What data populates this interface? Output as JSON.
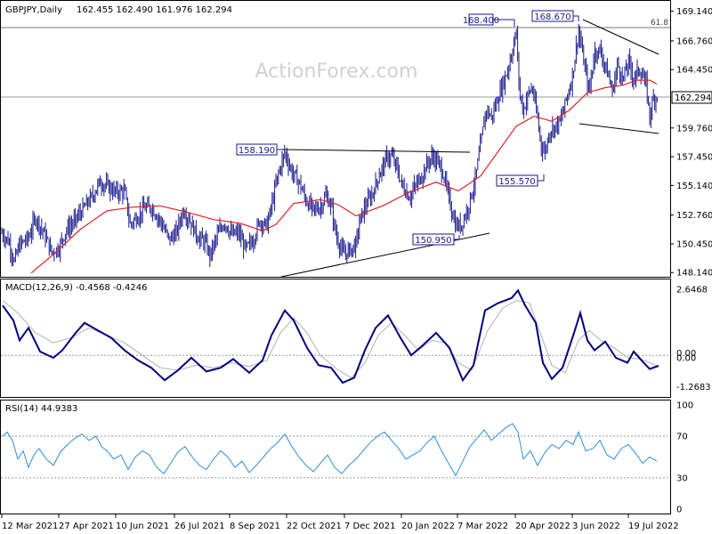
{
  "chart_data": {
    "type": "candlestick",
    "title": "GBPJPY,Daily",
    "ohlc_label": "162.455 162.490 161.976 162.294",
    "watermark": "ActionForex.com",
    "last_price": "162.294",
    "fib_label": "61.8",
    "colors": {
      "bars": "#1a1a8c",
      "ma": "#e02020",
      "macd": "#000080",
      "signal": "#b0b0b0",
      "rsi": "#2e8fd8",
      "label_border": "#1a1a8c",
      "grid": "#bdbdbd",
      "trend": "#000000"
    },
    "price_axis": {
      "range": [
        147.8,
        169.9
      ],
      "ticks": [
        "169.140",
        "166.760",
        "164.450",
        "162.294",
        "159.760",
        "157.450",
        "155.140",
        "152.760",
        "150.450",
        "148.140"
      ]
    },
    "annotations": [
      {
        "text": "168.400",
        "value": 168.4
      },
      {
        "text": "168.670",
        "value": 168.67
      },
      {
        "text": "158.190",
        "value": 158.19
      },
      {
        "text": "155.570",
        "value": 155.57
      },
      {
        "text": "150.950",
        "value": 150.95
      }
    ],
    "x_labels": [
      "12 Mar 2021",
      "27 Apr 2021",
      "10 Jun 2021",
      "26 Jul 2021",
      "8 Sep 2021",
      "22 Oct 2021",
      "7 Dec 2021",
      "20 Jan 2022",
      "7 Mar 2022",
      "20 Apr 2022",
      "3 Jun 2022",
      "19 Jul 2022"
    ],
    "price_series": [
      [
        0,
        151.5
      ],
      [
        10,
        150.6
      ],
      [
        16,
        149.0
      ],
      [
        22,
        150.4
      ],
      [
        32,
        150.9
      ],
      [
        40,
        152.6
      ],
      [
        50,
        151.2
      ],
      [
        58,
        149.8
      ],
      [
        66,
        150.1
      ],
      [
        74,
        151.5
      ],
      [
        84,
        152.3
      ],
      [
        94,
        153.3
      ],
      [
        104,
        154.3
      ],
      [
        112,
        155.4
      ],
      [
        120,
        155.1
      ],
      [
        130,
        154.6
      ],
      [
        140,
        154.7
      ],
      [
        146,
        152.0
      ],
      [
        154,
        152.6
      ],
      [
        162,
        153.3
      ],
      [
        170,
        153.4
      ],
      [
        180,
        152.3
      ],
      [
        190,
        150.8
      ],
      [
        198,
        151.3
      ],
      [
        206,
        153.2
      ],
      [
        214,
        152.2
      ],
      [
        222,
        151.0
      ],
      [
        230,
        150.6
      ],
      [
        236,
        149.5
      ],
      [
        244,
        151.1
      ],
      [
        252,
        152.2
      ],
      [
        260,
        151.2
      ],
      [
        268,
        151.3
      ],
      [
        276,
        150.0
      ],
      [
        284,
        150.7
      ],
      [
        292,
        152.3
      ],
      [
        300,
        151.9
      ],
      [
        306,
        153.8
      ],
      [
        312,
        155.9
      ],
      [
        320,
        157.8
      ],
      [
        328,
        156.2
      ],
      [
        336,
        155.4
      ],
      [
        344,
        153.9
      ],
      [
        352,
        153.2
      ],
      [
        360,
        153.4
      ],
      [
        366,
        154.3
      ],
      [
        372,
        153.5
      ],
      [
        378,
        151.0
      ],
      [
        386,
        149.6
      ],
      [
        394,
        150.0
      ],
      [
        400,
        150.4
      ],
      [
        404,
        152.2
      ],
      [
        410,
        153.4
      ],
      [
        418,
        154.4
      ],
      [
        426,
        156.0
      ],
      [
        434,
        157.3
      ],
      [
        440,
        157.5
      ],
      [
        446,
        156.5
      ],
      [
        452,
        155.1
      ],
      [
        460,
        154.2
      ],
      [
        466,
        155.0
      ],
      [
        474,
        155.9
      ],
      [
        480,
        156.9
      ],
      [
        486,
        157.5
      ],
      [
        492,
        157.0
      ],
      [
        498,
        156.1
      ],
      [
        506,
        153.6
      ],
      [
        512,
        151.9
      ],
      [
        518,
        151.9
      ],
      [
        526,
        153.4
      ],
      [
        534,
        155.6
      ],
      [
        540,
        158.4
      ],
      [
        546,
        161.3
      ],
      [
        552,
        160.6
      ],
      [
        558,
        161.8
      ],
      [
        564,
        163.1
      ],
      [
        570,
        164.3
      ],
      [
        576,
        166.1
      ],
      [
        580,
        167.5
      ],
      [
        584,
        162.4
      ],
      [
        588,
        161.2
      ],
      [
        594,
        162.6
      ],
      [
        598,
        163.0
      ],
      [
        604,
        160.5
      ],
      [
        608,
        158.4
      ],
      [
        612,
        157.8
      ],
      [
        618,
        159.6
      ],
      [
        624,
        159.9
      ],
      [
        630,
        160.3
      ],
      [
        636,
        162.0
      ],
      [
        642,
        163.5
      ],
      [
        646,
        165.4
      ],
      [
        650,
        167.6
      ],
      [
        654,
        165.9
      ],
      [
        658,
        164.2
      ],
      [
        662,
        162.6
      ],
      [
        668,
        165.9
      ],
      [
        674,
        166.0
      ],
      [
        678,
        165.2
      ],
      [
        684,
        163.8
      ],
      [
        688,
        162.7
      ],
      [
        694,
        164.9
      ],
      [
        700,
        163.6
      ],
      [
        706,
        165.1
      ],
      [
        712,
        163.7
      ],
      [
        718,
        164.5
      ],
      [
        722,
        163.9
      ],
      [
        726,
        163.2
      ],
      [
        730,
        160.7
      ],
      [
        734,
        162.1
      ],
      [
        738,
        162.3
      ]
    ],
    "ma_series": [
      [
        35,
        148.1
      ],
      [
        60,
        149.6
      ],
      [
        90,
        151.6
      ],
      [
        120,
        153.1
      ],
      [
        150,
        153.4
      ],
      [
        180,
        153.5
      ],
      [
        210,
        153.0
      ],
      [
        240,
        152.4
      ],
      [
        270,
        152.1
      ],
      [
        295,
        151.5
      ],
      [
        310,
        152.0
      ],
      [
        330,
        153.7
      ],
      [
        360,
        154.0
      ],
      [
        380,
        153.6
      ],
      [
        400,
        152.7
      ],
      [
        430,
        153.5
      ],
      [
        460,
        154.6
      ],
      [
        490,
        155.4
      ],
      [
        515,
        154.7
      ],
      [
        540,
        155.9
      ],
      [
        560,
        157.9
      ],
      [
        580,
        159.9
      ],
      [
        600,
        160.7
      ],
      [
        620,
        160.3
      ],
      [
        640,
        161.2
      ],
      [
        660,
        162.6
      ],
      [
        680,
        163.0
      ],
      [
        700,
        163.2
      ],
      [
        715,
        163.6
      ],
      [
        730,
        163.6
      ],
      [
        738,
        163.3
      ]
    ],
    "macd": {
      "label": "MACD(12,26,9) -0.4568 -0.4246",
      "ticks": [
        "2.6468",
        "0.00",
        "0.00",
        "-1.2683"
      ],
      "range": [
        -1.6,
        2.9
      ],
      "zero": 0,
      "macd_series": [
        [
          3,
          2.0
        ],
        [
          15,
          1.4
        ],
        [
          22,
          0.6
        ],
        [
          32,
          1.1
        ],
        [
          45,
          0.15
        ],
        [
          60,
          -0.1
        ],
        [
          70,
          0.2
        ],
        [
          85,
          0.9
        ],
        [
          95,
          1.3
        ],
        [
          110,
          1.0
        ],
        [
          125,
          0.7
        ],
        [
          140,
          0.2
        ],
        [
          155,
          -0.2
        ],
        [
          170,
          -0.5
        ],
        [
          185,
          -1.0
        ],
        [
          200,
          -0.6
        ],
        [
          215,
          -0.1
        ],
        [
          232,
          -0.65
        ],
        [
          248,
          -0.5
        ],
        [
          262,
          -0.15
        ],
        [
          280,
          -0.7
        ],
        [
          295,
          -0.2
        ],
        [
          305,
          0.8
        ],
        [
          320,
          1.8
        ],
        [
          330,
          1.4
        ],
        [
          345,
          0.3
        ],
        [
          358,
          -0.4
        ],
        [
          372,
          -0.5
        ],
        [
          385,
          -1.1
        ],
        [
          398,
          -0.9
        ],
        [
          410,
          0.2
        ],
        [
          422,
          1.1
        ],
        [
          436,
          1.6
        ],
        [
          450,
          0.7
        ],
        [
          462,
          0.0
        ],
        [
          475,
          0.4
        ],
        [
          490,
          0.9
        ],
        [
          505,
          0.3
        ],
        [
          520,
          -1.0
        ],
        [
          532,
          -0.4
        ],
        [
          545,
          1.8
        ],
        [
          560,
          2.1
        ],
        [
          575,
          2.3
        ],
        [
          582,
          2.6
        ],
        [
          590,
          2.0
        ],
        [
          602,
          1.3
        ],
        [
          610,
          -0.3
        ],
        [
          620,
          -0.95
        ],
        [
          632,
          -0.5
        ],
        [
          645,
          0.9
        ],
        [
          652,
          1.7
        ],
        [
          660,
          0.6
        ],
        [
          668,
          0.2
        ],
        [
          680,
          0.55
        ],
        [
          692,
          -0.1
        ],
        [
          705,
          -0.3
        ],
        [
          712,
          0.15
        ],
        [
          722,
          -0.25
        ],
        [
          730,
          -0.55
        ],
        [
          740,
          -0.42
        ]
      ],
      "signal_series": [
        [
          3,
          2.2
        ],
        [
          20,
          1.7
        ],
        [
          40,
          0.9
        ],
        [
          60,
          0.5
        ],
        [
          80,
          0.7
        ],
        [
          100,
          1.1
        ],
        [
          120,
          0.8
        ],
        [
          140,
          0.5
        ],
        [
          160,
          0.0
        ],
        [
          180,
          -0.5
        ],
        [
          200,
          -0.6
        ],
        [
          220,
          -0.4
        ],
        [
          240,
          -0.5
        ],
        [
          260,
          -0.3
        ],
        [
          280,
          -0.45
        ],
        [
          300,
          -0.2
        ],
        [
          315,
          0.9
        ],
        [
          330,
          1.5
        ],
        [
          345,
          0.9
        ],
        [
          360,
          0.0
        ],
        [
          380,
          -0.6
        ],
        [
          395,
          -0.9
        ],
        [
          410,
          -0.3
        ],
        [
          425,
          0.8
        ],
        [
          440,
          1.3
        ],
        [
          455,
          0.8
        ],
        [
          470,
          0.2
        ],
        [
          485,
          0.6
        ],
        [
          500,
          0.5
        ],
        [
          515,
          -0.3
        ],
        [
          530,
          -0.6
        ],
        [
          548,
          1.0
        ],
        [
          565,
          1.9
        ],
        [
          580,
          2.2
        ],
        [
          595,
          2.1
        ],
        [
          608,
          0.8
        ],
        [
          620,
          -0.4
        ],
        [
          635,
          -0.7
        ],
        [
          650,
          0.6
        ],
        [
          662,
          1.0
        ],
        [
          675,
          0.6
        ],
        [
          690,
          0.3
        ],
        [
          705,
          -0.1
        ],
        [
          720,
          -0.15
        ],
        [
          740,
          -0.45
        ]
      ]
    },
    "rsi": {
      "label": "RSI(14) 44.9383",
      "ticks": [
        "100",
        "70",
        "30",
        "0"
      ],
      "range": [
        0,
        100
      ],
      "levels": [
        70,
        30
      ],
      "rsi_series": [
        [
          3,
          70
        ],
        [
          8,
          74
        ],
        [
          14,
          66
        ],
        [
          20,
          48
        ],
        [
          26,
          56
        ],
        [
          32,
          40
        ],
        [
          38,
          52
        ],
        [
          44,
          58
        ],
        [
          52,
          48
        ],
        [
          60,
          42
        ],
        [
          68,
          55
        ],
        [
          76,
          62
        ],
        [
          84,
          68
        ],
        [
          92,
          72
        ],
        [
          100,
          66
        ],
        [
          108,
          70
        ],
        [
          114,
          60
        ],
        [
          120,
          56
        ],
        [
          128,
          48
        ],
        [
          136,
          52
        ],
        [
          144,
          38
        ],
        [
          152,
          50
        ],
        [
          160,
          56
        ],
        [
          168,
          52
        ],
        [
          176,
          40
        ],
        [
          184,
          34
        ],
        [
          192,
          44
        ],
        [
          200,
          55
        ],
        [
          208,
          60
        ],
        [
          216,
          50
        ],
        [
          224,
          42
        ],
        [
          232,
          38
        ],
        [
          240,
          48
        ],
        [
          248,
          56
        ],
        [
          256,
          50
        ],
        [
          264,
          40
        ],
        [
          272,
          46
        ],
        [
          280,
          35
        ],
        [
          288,
          42
        ],
        [
          296,
          50
        ],
        [
          304,
          58
        ],
        [
          312,
          64
        ],
        [
          320,
          72
        ],
        [
          328,
          60
        ],
        [
          336,
          50
        ],
        [
          344,
          42
        ],
        [
          352,
          36
        ],
        [
          360,
          44
        ],
        [
          368,
          52
        ],
        [
          376,
          40
        ],
        [
          384,
          34
        ],
        [
          392,
          42
        ],
        [
          400,
          48
        ],
        [
          408,
          56
        ],
        [
          416,
          64
        ],
        [
          424,
          70
        ],
        [
          432,
          74
        ],
        [
          440,
          66
        ],
        [
          448,
          58
        ],
        [
          456,
          48
        ],
        [
          464,
          52
        ],
        [
          472,
          56
        ],
        [
          480,
          64
        ],
        [
          488,
          70
        ],
        [
          496,
          56
        ],
        [
          504,
          44
        ],
        [
          512,
          32
        ],
        [
          520,
          46
        ],
        [
          528,
          60
        ],
        [
          536,
          68
        ],
        [
          544,
          76
        ],
        [
          552,
          66
        ],
        [
          560,
          72
        ],
        [
          568,
          78
        ],
        [
          576,
          82
        ],
        [
          582,
          74
        ],
        [
          588,
          48
        ],
        [
          596,
          56
        ],
        [
          604,
          42
        ],
        [
          612,
          54
        ],
        [
          620,
          62
        ],
        [
          628,
          58
        ],
        [
          636,
          66
        ],
        [
          644,
          62
        ],
        [
          650,
          74
        ],
        [
          658,
          56
        ],
        [
          666,
          58
        ],
        [
          674,
          66
        ],
        [
          682,
          52
        ],
        [
          690,
          48
        ],
        [
          698,
          58
        ],
        [
          706,
          62
        ],
        [
          714,
          54
        ],
        [
          722,
          44
        ],
        [
          730,
          50
        ],
        [
          738,
          46
        ]
      ]
    }
  }
}
